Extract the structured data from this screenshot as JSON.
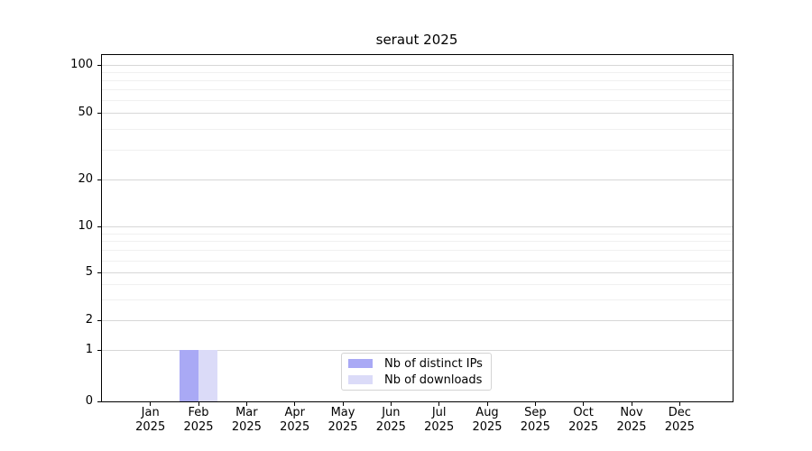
{
  "chart_data": {
    "type": "bar",
    "title": "seraut 2025",
    "x_categories": [
      "Jan",
      "Feb",
      "Mar",
      "Apr",
      "May",
      "Jun",
      "Jul",
      "Aug",
      "Sep",
      "Oct",
      "Nov",
      "Dec"
    ],
    "x_year": "2025",
    "series": [
      {
        "name": "Nb of distinct IPs",
        "color": "#a9a9f5",
        "values": [
          0,
          1,
          0,
          0,
          0,
          0,
          0,
          0,
          0,
          0,
          0,
          0
        ]
      },
      {
        "name": "Nb of downloads",
        "color": "#dbdbf8",
        "values": [
          0,
          1,
          0,
          0,
          0,
          0,
          0,
          0,
          0,
          0,
          0,
          0
        ]
      }
    ],
    "yscale": "symlog",
    "ylim": [
      0,
      110
    ],
    "y_ticks": [
      0,
      1,
      2,
      5,
      10,
      20,
      50,
      100
    ],
    "y_minor_ticks": [
      3,
      4,
      6,
      7,
      8,
      9,
      30,
      40,
      60,
      70,
      80,
      90
    ],
    "grid": "horizontal major and minor gridlines",
    "legend_position": "inside axes, bottom center",
    "legend_entries": [
      "Nb of distinct IPs",
      "Nb of downloads"
    ]
  },
  "colors": {
    "bar_distinct_ips": "#a9a9f5",
    "bar_downloads": "#dbdbf8",
    "grid_major": "#d7d7d7",
    "grid_minor": "#f0f0f0",
    "spine": "#000000",
    "legend_border": "#d4d4d4"
  }
}
